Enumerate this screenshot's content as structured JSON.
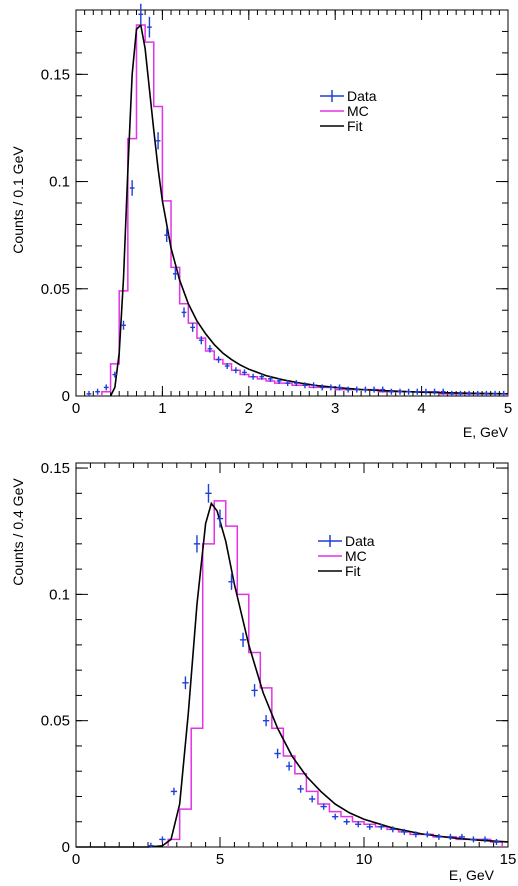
{
  "colors": {
    "data": "#1f3fd6",
    "mc": "#e233e6",
    "fit": "#000000"
  },
  "chart_data": [
    {
      "type": "line",
      "xlabel": "E, GeV",
      "ylabel": "Counts / 0.1 GeV",
      "xlim": [
        0,
        5
      ],
      "ylim": [
        0,
        0.18
      ],
      "xticks": [
        0,
        1,
        2,
        3,
        4,
        5
      ],
      "xtick_labels": [
        "0",
        "1",
        "2",
        "3",
        "4",
        "5"
      ],
      "yticks": [
        0,
        0.05,
        0.1,
        0.15
      ],
      "ytick_labels": [
        "0",
        "0.05",
        "0.1",
        "0.15"
      ],
      "legend": {
        "placement": "top-right",
        "entries": [
          "Data",
          "MC",
          "Fit"
        ]
      },
      "series": [
        {
          "name": "Data",
          "kind": "points",
          "x": [
            0.15,
            0.25,
            0.35,
            0.45,
            0.55,
            0.65,
            0.75,
            0.85,
            0.95,
            1.05,
            1.15,
            1.25,
            1.35,
            1.45,
            1.55,
            1.65,
            1.75,
            1.85,
            1.95,
            2.05,
            2.15,
            2.25,
            2.35,
            2.45,
            2.55,
            2.65,
            2.75,
            2.85,
            2.95,
            3.05,
            3.15,
            3.25,
            3.35,
            3.45,
            3.55,
            3.65,
            3.75,
            3.85,
            3.95,
            4.05,
            4.15,
            4.25,
            4.35,
            4.45,
            4.55,
            4.65,
            4.75,
            4.85,
            4.95
          ],
          "y": [
            0.001,
            0.002,
            0.004,
            0.01,
            0.033,
            0.097,
            0.178,
            0.172,
            0.119,
            0.075,
            0.057,
            0.039,
            0.032,
            0.026,
            0.022,
            0.017,
            0.014,
            0.012,
            0.011,
            0.009,
            0.009,
            0.008,
            0.007,
            0.006,
            0.006,
            0.005,
            0.005,
            0.004,
            0.004,
            0.004,
            0.003,
            0.003,
            0.003,
            0.003,
            0.003,
            0.002,
            0.002,
            0.002,
            0.002,
            0.002,
            0.002,
            0.002,
            0.001,
            0.001,
            0.001,
            0.001,
            0.001,
            0.001,
            0.001
          ]
        },
        {
          "name": "MC",
          "kind": "histogram",
          "bin_width": 0.1,
          "bin_starts": [
            0.3,
            0.4,
            0.5,
            0.6,
            0.7,
            0.8,
            0.9,
            1.0,
            1.1,
            1.2,
            1.3,
            1.4,
            1.5,
            1.6,
            1.7,
            1.8,
            1.9,
            2.0,
            2.1,
            2.2,
            2.3,
            2.4,
            2.5,
            2.6,
            2.7,
            2.8,
            2.9,
            3.0,
            3.1,
            3.2,
            3.3,
            3.4,
            3.5,
            3.6,
            3.7,
            3.8,
            3.9,
            4.0,
            4.1,
            4.2,
            4.3,
            4.4,
            4.5,
            4.6,
            4.7,
            4.8,
            4.9
          ],
          "values": [
            0.002,
            0.015,
            0.049,
            0.12,
            0.173,
            0.165,
            0.135,
            0.091,
            0.06,
            0.043,
            0.034,
            0.027,
            0.021,
            0.017,
            0.015,
            0.012,
            0.01,
            0.009,
            0.008,
            0.007,
            0.006,
            0.006,
            0.005,
            0.005,
            0.004,
            0.004,
            0.004,
            0.003,
            0.003,
            0.003,
            0.003,
            0.003,
            0.002,
            0.002,
            0.002,
            0.002,
            0.002,
            0.002,
            0.002,
            0.001,
            0.001,
            0.001,
            0.001,
            0.001,
            0.001,
            0.001,
            0.001
          ]
        },
        {
          "name": "Fit",
          "kind": "curve",
          "x": [
            0.4,
            0.45,
            0.5,
            0.55,
            0.6,
            0.65,
            0.7,
            0.75,
            0.8,
            0.85,
            0.9,
            0.95,
            1.0,
            1.1,
            1.2,
            1.3,
            1.4,
            1.5,
            1.6,
            1.7,
            1.8,
            1.9,
            2.0,
            2.2,
            2.4,
            2.6,
            2.8,
            3.0,
            3.3,
            3.6,
            4.0,
            4.5,
            5.0
          ],
          "y": [
            0,
            0.004,
            0.02,
            0.055,
            0.105,
            0.15,
            0.171,
            0.173,
            0.162,
            0.143,
            0.124,
            0.106,
            0.091,
            0.069,
            0.054,
            0.043,
            0.035,
            0.029,
            0.024,
            0.02,
            0.017,
            0.0145,
            0.0125,
            0.0095,
            0.0075,
            0.006,
            0.0048,
            0.004,
            0.003,
            0.0024,
            0.0018,
            0.0013,
            0.001
          ]
        }
      ]
    },
    {
      "type": "line",
      "xlabel": "E, GeV",
      "ylabel": "Counts / 0.4 GeV",
      "xlim": [
        0,
        15
      ],
      "ylim": [
        0,
        0.152
      ],
      "xticks": [
        0,
        5,
        10,
        15
      ],
      "xtick_labels": [
        "0",
        "5",
        "10",
        "15"
      ],
      "yticks": [
        0,
        0.05,
        0.1,
        0.15
      ],
      "ytick_labels": [
        "0",
        "0.05",
        "0.1",
        "0.15"
      ],
      "legend": {
        "placement": "top-right",
        "entries": [
          "Data",
          "MC",
          "Fit"
        ]
      },
      "series": [
        {
          "name": "Data",
          "kind": "points",
          "x": [
            2.6,
            3.0,
            3.4,
            3.8,
            4.2,
            4.6,
            5.0,
            5.4,
            5.8,
            6.2,
            6.6,
            7.0,
            7.4,
            7.8,
            8.2,
            8.6,
            9.0,
            9.4,
            9.8,
            10.2,
            10.6,
            11.0,
            11.4,
            11.8,
            12.2,
            12.6,
            13.0,
            13.4,
            13.8,
            14.2,
            14.6
          ],
          "y": [
            0.0005,
            0.003,
            0.022,
            0.065,
            0.12,
            0.14,
            0.13,
            0.105,
            0.082,
            0.062,
            0.05,
            0.037,
            0.032,
            0.023,
            0.019,
            0.016,
            0.012,
            0.01,
            0.009,
            0.008,
            0.008,
            0.007,
            0.006,
            0.005,
            0.005,
            0.004,
            0.004,
            0.004,
            0.003,
            0.003,
            0.002
          ]
        },
        {
          "name": "MC",
          "kind": "histogram",
          "bin_width": 0.4,
          "bin_starts": [
            3.2,
            3.6,
            4.0,
            4.4,
            4.8,
            5.2,
            5.6,
            6.0,
            6.4,
            6.8,
            7.2,
            7.6,
            8.0,
            8.4,
            8.8,
            9.2,
            9.6,
            10.0,
            10.4,
            10.8,
            11.2,
            11.6,
            12.0,
            12.4,
            12.8,
            13.2,
            13.6,
            14.0,
            14.4
          ],
          "values": [
            0.003,
            0.015,
            0.047,
            0.12,
            0.137,
            0.127,
            0.1,
            0.077,
            0.063,
            0.047,
            0.036,
            0.029,
            0.022,
            0.017,
            0.014,
            0.012,
            0.01,
            0.009,
            0.008,
            0.007,
            0.006,
            0.005,
            0.005,
            0.004,
            0.004,
            0.003,
            0.003,
            0.003,
            0.002
          ]
        },
        {
          "name": "Fit",
          "kind": "curve",
          "x": [
            0,
            2.5,
            3.0,
            3.3,
            3.6,
            3.9,
            4.2,
            4.5,
            4.7,
            4.9,
            5.2,
            5.5,
            6.0,
            6.5,
            7.0,
            7.5,
            8.0,
            8.5,
            9.0,
            9.5,
            10.0,
            11.0,
            12.0,
            13.0,
            14.0,
            15.0
          ],
          "y": [
            0,
            0,
            0.0005,
            0.003,
            0.017,
            0.053,
            0.096,
            0.128,
            0.136,
            0.133,
            0.121,
            0.104,
            0.08,
            0.061,
            0.047,
            0.036,
            0.028,
            0.022,
            0.017,
            0.0135,
            0.011,
            0.0075,
            0.0052,
            0.0037,
            0.0027,
            0.002
          ]
        }
      ]
    }
  ]
}
